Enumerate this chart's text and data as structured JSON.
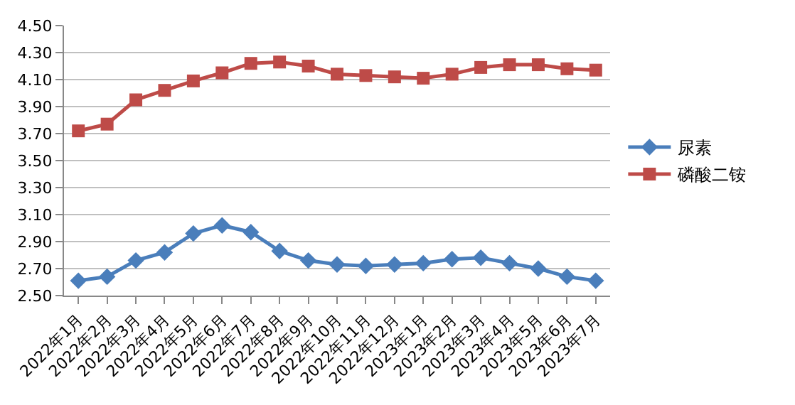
{
  "chart_data": {
    "type": "line",
    "categories": [
      "2022年1月",
      "2022年2月",
      "2022年3月",
      "2022年4月",
      "2022年5月",
      "2022年6月",
      "2022年7月",
      "2022年8月",
      "2022年9月",
      "2022年10月",
      "2022年11月",
      "2022年12月",
      "2023年1月",
      "2023年2月",
      "2023年3月",
      "2023年4月",
      "2023年5月",
      "2023年6月",
      "2023年7月"
    ],
    "series": [
      {
        "name": "尿素",
        "color": "#4a7ebb",
        "marker": "diamond",
        "values": [
          2.61,
          2.64,
          2.76,
          2.82,
          2.96,
          3.02,
          2.97,
          2.83,
          2.76,
          2.73,
          2.72,
          2.73,
          2.74,
          2.77,
          2.78,
          2.74,
          2.7,
          2.64,
          2.61
        ]
      },
      {
        "name": "磷酸二铵",
        "color": "#be4b48",
        "marker": "square",
        "values": [
          3.72,
          3.77,
          3.95,
          4.02,
          4.09,
          4.15,
          4.22,
          4.23,
          4.2,
          4.14,
          4.13,
          4.12,
          4.11,
          4.14,
          4.19,
          4.21,
          4.21,
          4.18,
          4.17
        ]
      }
    ],
    "ylim": [
      2.5,
      4.5
    ],
    "yticks": [
      {
        "value": 2.5,
        "label": "2.50"
      },
      {
        "value": 2.7,
        "label": "2.70"
      },
      {
        "value": 2.9,
        "label": "2.90"
      },
      {
        "value": 3.1,
        "label": "3.10"
      },
      {
        "value": 3.3,
        "label": "3.30"
      },
      {
        "value": 3.5,
        "label": "3.50"
      },
      {
        "value": 3.7,
        "label": "3.70"
      },
      {
        "value": 3.9,
        "label": "3.90"
      },
      {
        "value": 4.1,
        "label": "4.10"
      },
      {
        "value": 4.3,
        "label": "4.30"
      },
      {
        "value": 4.5,
        "label": "4.50"
      }
    ],
    "grid": "y",
    "legend": "right",
    "line_style": "solid"
  }
}
